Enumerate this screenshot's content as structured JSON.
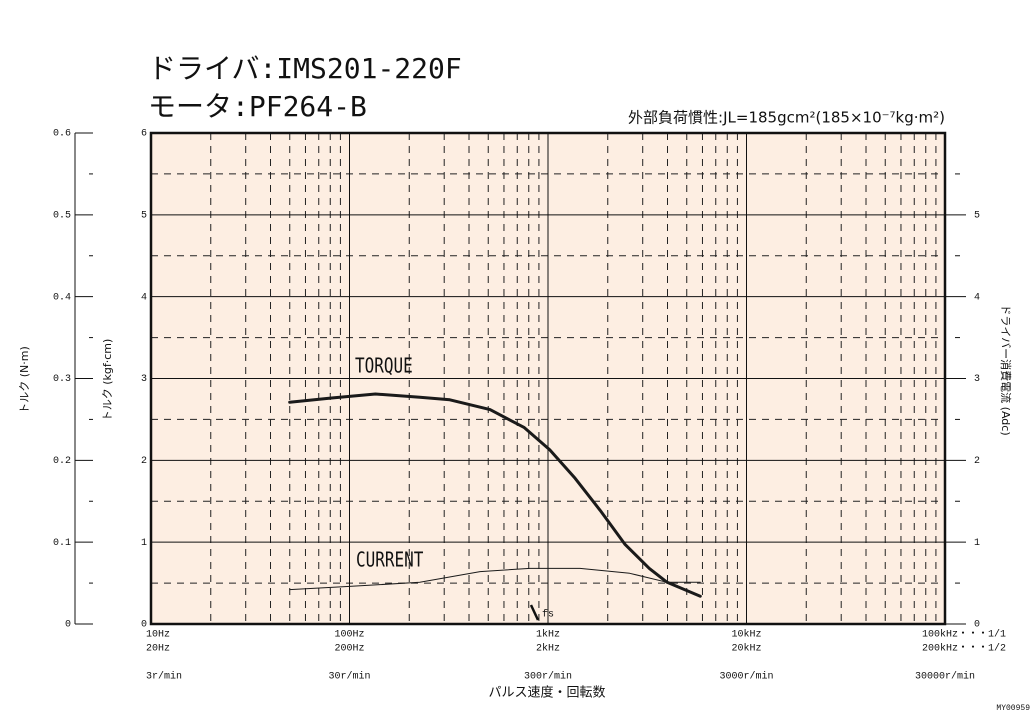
{
  "chart_data": {
    "type": "line",
    "title": "ドライバ:IMS201-220F",
    "title_line2": "モータ:PF264-B",
    "subtitle": "外部負荷慣性:JL=185gcm²(185×10⁻⁷kg·m²)",
    "x_label": "パルス速度・回転数",
    "y_label": "トルク (kgf·cm)",
    "y_outer_label": "トルク (N·m)",
    "y2_label": "ドライバー消費電流 (Adc)",
    "code": "MY00959",
    "log_x": true,
    "grid": true,
    "background": "#fdeee2",
    "xlim": [
      10,
      100000
    ],
    "xticks": [
      {
        "value": 10,
        "label": "10Hz"
      },
      {
        "value": 100,
        "label": "100Hz"
      },
      {
        "value": 1000,
        "label": "1kHz"
      },
      {
        "value": 10000,
        "label": "10kHz"
      },
      {
        "value": 100000,
        "label": "100kHz・・・1/1"
      }
    ],
    "x_half_step_labels": [
      "20Hz",
      "200Hz",
      "2kHz",
      "20kHz",
      "200kHz・・・1/2"
    ],
    "x_rpm_labels": [
      "3r/min",
      "30r/min",
      "300r/min",
      "3000r/min",
      "30000r/min"
    ],
    "ylim": [
      0,
      6
    ],
    "yticks": [
      0,
      1,
      2,
      3,
      4,
      5,
      6
    ],
    "y_outer_lim": [
      0,
      0.6
    ],
    "y_outer_ticks": [
      0,
      0.1,
      0.2,
      0.3,
      0.4,
      0.5,
      0.6
    ],
    "y2lim": [
      0,
      6
    ],
    "y2ticks": [
      0,
      1,
      2,
      3,
      4,
      5
    ],
    "series": [
      {
        "name": "TORQUE",
        "color": "#1a1a1a",
        "x": [
          50,
          80,
          135,
          226,
          320,
          510,
          760,
          1020,
          1370,
          1830,
          2450,
          3240,
          3980,
          5850
        ],
        "values": [
          2.71,
          2.76,
          2.81,
          2.77,
          2.74,
          2.62,
          2.4,
          2.13,
          1.78,
          1.39,
          0.97,
          0.68,
          0.51,
          0.34
        ]
      },
      {
        "name": "CURRENT",
        "color": "#1a1a1a",
        "axis": "y2",
        "x": [
          50,
          100,
          226,
          455,
          810,
          1450,
          2580,
          3980,
          5850
        ],
        "values": [
          0.42,
          0.46,
          0.51,
          0.64,
          0.68,
          0.68,
          0.62,
          0.51,
          0.51
        ]
      }
    ],
    "annotations": [
      {
        "text": "fs",
        "x": 850
      }
    ]
  }
}
